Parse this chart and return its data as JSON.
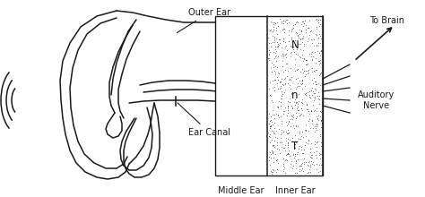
{
  "bg_color": "#ffffff",
  "line_color": "#1a1a1a",
  "label_outer_ear": "Outer Ear",
  "label_ear_canal": "Ear Canal",
  "label_middle_ear": "Middle Ear",
  "label_inner_ear": "Inner Ear",
  "label_to_brain": "To Brain",
  "label_auditory_nerve": "Auditory\nNerve",
  "label_N": "N",
  "label_n": "n",
  "label_T": "T",
  "font_size_labels": 7.0,
  "font_size_inner": 8.5
}
